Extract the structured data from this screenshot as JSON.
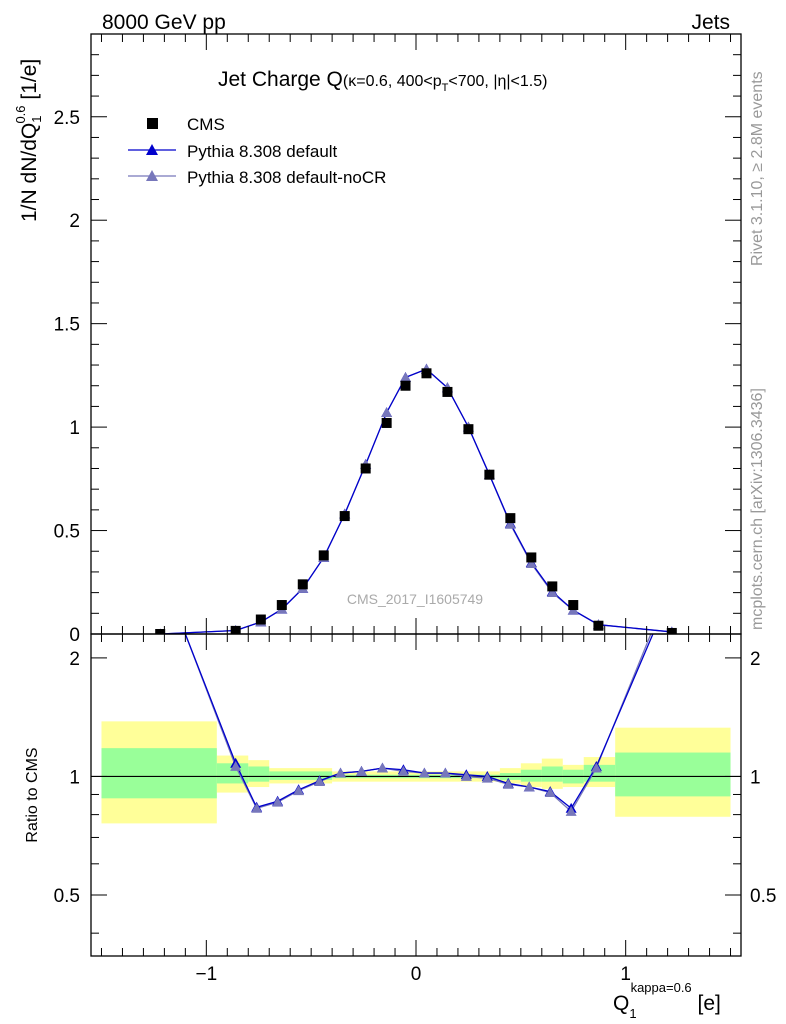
{
  "header": {
    "energy_label": "8000 GeV pp",
    "process_label": "Jets",
    "side_rivet": "Rivet 3.1.10, ≥ 2.8M events",
    "side_mcplots": "mcplots.cern.ch [arXiv:1306.3436]",
    "analysis_id": "CMS_2017_I1605749"
  },
  "title": {
    "main": "Jet Charge Q",
    "sub_pre": "(κ=0.6, 400<p",
    "sub_sub": "T",
    "sub_post": "<700, |η|<1.5)"
  },
  "axes": {
    "ylabel_pre": "1/N dN/dQ",
    "ylabel_sub": "1",
    "ylabel_sup": "0.6",
    "ylabel_post": " [1/e]",
    "ratio_ylabel": "Ratio to CMS",
    "xlabel_main": "Q",
    "xlabel_sub": "1",
    "xlabel_sup": "kappa=0.6",
    "xlabel_post": " [e]",
    "main_yticks": [
      "0",
      "0.5",
      "1",
      "1.5",
      "2",
      "2.5"
    ],
    "ratio_yticks_left": [
      "0.5",
      "1",
      "2"
    ],
    "ratio_yticks_right": [
      "0.5",
      "1",
      "2"
    ],
    "xticks": [
      "−1",
      "0",
      "1"
    ]
  },
  "legend": {
    "items": [
      {
        "label": "CMS",
        "color": "#000000",
        "marker": "square"
      },
      {
        "label": "Pythia 8.308 default",
        "color": "#0000cc",
        "marker": "triangle"
      },
      {
        "label": "Pythia 8.308 default-noCR",
        "color": "#7777bb",
        "marker": "triangle"
      }
    ]
  },
  "chart_data": {
    "type": "line",
    "xlim": [
      -1.55,
      1.55
    ],
    "main_ylim": [
      0,
      2.9
    ],
    "ratio_ylim": [
      0.35,
      2.3
    ],
    "ratio_scale": "log",
    "cms": {
      "name": "CMS",
      "x": [
        -1.22,
        -0.86,
        -0.74,
        -0.64,
        -0.54,
        -0.44,
        -0.34,
        -0.24,
        -0.14,
        -0.05,
        0.05,
        0.15,
        0.25,
        0.35,
        0.45,
        0.55,
        0.65,
        0.75,
        0.87,
        1.22
      ],
      "y": [
        0.0,
        0.015,
        0.07,
        0.14,
        0.24,
        0.38,
        0.57,
        0.8,
        1.02,
        1.2,
        1.26,
        1.17,
        0.99,
        0.77,
        0.56,
        0.37,
        0.23,
        0.14,
        0.04,
        0.005
      ]
    },
    "series": [
      {
        "name": "Pythia 8.308 default",
        "color": "#0000cc",
        "x": [
          -1.22,
          -0.86,
          -0.74,
          -0.64,
          -0.54,
          -0.44,
          -0.34,
          -0.24,
          -0.14,
          -0.05,
          0.05,
          0.15,
          0.25,
          0.35,
          0.45,
          0.55,
          0.65,
          0.75,
          0.87,
          1.22
        ],
        "y": [
          0.0,
          0.017,
          0.058,
          0.12,
          0.22,
          0.37,
          0.58,
          0.82,
          1.07,
          1.24,
          1.28,
          1.19,
          1.0,
          0.77,
          0.535,
          0.345,
          0.205,
          0.115,
          0.045,
          0.01
        ],
        "ratio_x": [
          -1.1,
          -0.86,
          -0.76,
          -0.66,
          -0.56,
          -0.46,
          -0.36,
          -0.26,
          -0.16,
          -0.06,
          0.04,
          0.14,
          0.24,
          0.34,
          0.44,
          0.54,
          0.64,
          0.74,
          0.86,
          1.13
        ],
        "ratio_y": [
          2.3,
          1.08,
          0.835,
          0.865,
          0.925,
          0.975,
          1.02,
          1.03,
          1.05,
          1.04,
          1.02,
          1.02,
          1.01,
          1.0,
          0.96,
          0.94,
          0.915,
          0.83,
          1.06,
          2.3
        ]
      },
      {
        "name": "Pythia 8.308 default-noCR",
        "color": "#7777bb",
        "x": [
          -1.22,
          -0.86,
          -0.74,
          -0.64,
          -0.54,
          -0.44,
          -0.34,
          -0.24,
          -0.14,
          -0.05,
          0.05,
          0.15,
          0.25,
          0.35,
          0.45,
          0.55,
          0.65,
          0.75,
          0.87,
          1.22
        ],
        "y": [
          0.0,
          0.017,
          0.058,
          0.12,
          0.22,
          0.37,
          0.58,
          0.82,
          1.07,
          1.24,
          1.28,
          1.19,
          1.0,
          0.77,
          0.53,
          0.34,
          0.2,
          0.115,
          0.045,
          0.01
        ],
        "ratio_x": [
          -1.1,
          -0.86,
          -0.76,
          -0.66,
          -0.56,
          -0.46,
          -0.36,
          -0.26,
          -0.16,
          -0.06,
          0.04,
          0.14,
          0.24,
          0.34,
          0.44,
          0.54,
          0.64,
          0.74,
          0.86,
          1.12
        ],
        "ratio_y": [
          2.3,
          1.06,
          0.83,
          0.86,
          0.92,
          0.97,
          1.02,
          1.03,
          1.05,
          1.03,
          1.02,
          1.02,
          1.0,
          0.99,
          0.955,
          0.94,
          0.91,
          0.815,
          1.05,
          2.3
        ]
      }
    ],
    "ratio_bands": [
      {
        "x0": -1.5,
        "x1": -0.95,
        "inner": [
          0.88,
          1.18
        ],
        "outer": [
          0.76,
          1.38
        ]
      },
      {
        "x0": -0.95,
        "x1": -0.8,
        "inner": [
          0.96,
          1.08
        ],
        "outer": [
          0.91,
          1.13
        ]
      },
      {
        "x0": -0.8,
        "x1": -0.7,
        "inner": [
          0.97,
          1.06
        ],
        "outer": [
          0.94,
          1.1
        ]
      },
      {
        "x0": -0.7,
        "x1": -0.4,
        "inner": [
          0.98,
          1.03
        ],
        "outer": [
          0.96,
          1.05
        ]
      },
      {
        "x0": -0.4,
        "x1": 0.4,
        "inner": [
          0.99,
          1.01
        ],
        "outer": [
          0.97,
          1.03
        ]
      },
      {
        "x0": 0.4,
        "x1": 0.5,
        "inner": [
          0.98,
          1.02
        ],
        "outer": [
          0.96,
          1.05
        ]
      },
      {
        "x0": 0.5,
        "x1": 0.6,
        "inner": [
          0.97,
          1.04
        ],
        "outer": [
          0.94,
          1.08
        ]
      },
      {
        "x0": 0.6,
        "x1": 0.7,
        "inner": [
          0.97,
          1.06
        ],
        "outer": [
          0.93,
          1.11
        ]
      },
      {
        "x0": 0.7,
        "x1": 0.8,
        "inner": [
          0.96,
          1.04
        ],
        "outer": [
          0.94,
          1.07
        ]
      },
      {
        "x0": 0.8,
        "x1": 0.95,
        "inner": [
          0.97,
          1.07
        ],
        "outer": [
          0.94,
          1.12
        ]
      },
      {
        "x0": 0.95,
        "x1": 1.5,
        "inner": [
          0.89,
          1.15
        ],
        "outer": [
          0.79,
          1.33
        ]
      }
    ],
    "band_colors": {
      "inner": "#99ff99",
      "outer": "#ffff99"
    }
  }
}
